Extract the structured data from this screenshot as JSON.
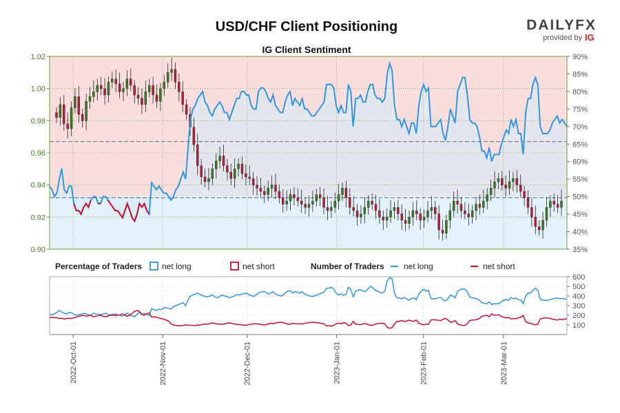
{
  "chart_data": {
    "type": "line",
    "title": "USD/CHF Client Positioning",
    "subtitle": "IG Client Sentiment",
    "price_axis": {
      "ylim": [
        0.9,
        1.02
      ],
      "ticks": [
        "0.90",
        "0.92",
        "0.94",
        "0.96",
        "0.98",
        "1.00",
        "1.02"
      ]
    },
    "sentiment_axis": {
      "ylim": [
        35,
        90
      ],
      "ticks": [
        "35%",
        "40%",
        "45%",
        "50%",
        "55%",
        "60%",
        "65%",
        "70%",
        "75%",
        "80%",
        "85%",
        "90%"
      ]
    },
    "traders_axis": {
      "ylim": [
        0,
        600
      ],
      "ticks": [
        "100",
        "200",
        "300",
        "400",
        "500",
        "600"
      ]
    },
    "date_ticks": [
      "2022-Oct-01",
      "2022-Nov-01",
      "2022-Dec-01",
      "2023-Jan-01",
      "2023-Feb-01",
      "2023-Mar-01"
    ],
    "reference_levels": {
      "price_dashed": [
        0.967,
        0.932
      ],
      "neutral_pct": 50
    },
    "legend": {
      "percentage_heading": "Percentage of Traders",
      "number_heading": "Number of Traders",
      "net_long": "net long",
      "net_short": "net short"
    },
    "colors": {
      "net_long": "#2f96e0",
      "net_short": "#c8102e",
      "candle_up": "#3a7a1e",
      "candle_down": "#b71c3c",
      "long_zone": "#e3f1fa",
      "short_zone": "#fadede"
    },
    "series": [
      {
        "name": "net long",
        "axis": "sentiment_pct",
        "values": [
          53,
          52,
          50,
          51,
          55,
          58,
          52,
          51,
          53,
          53,
          48,
          46,
          46,
          45,
          47,
          48,
          47,
          49,
          50,
          50,
          48,
          48,
          50,
          50,
          49,
          48,
          47,
          46,
          46,
          45,
          44,
          46,
          48,
          46,
          44,
          43,
          45,
          48,
          47,
          48,
          46,
          45,
          54,
          53,
          52,
          53,
          52,
          51,
          51,
          50,
          49,
          50,
          52,
          53,
          55,
          57,
          55,
          64,
          72,
          75,
          76,
          78,
          79,
          80,
          77,
          76,
          74,
          73,
          75,
          76,
          77,
          76,
          74,
          74,
          72,
          74,
          76,
          78,
          78,
          80,
          80,
          79,
          79,
          76,
          75,
          75,
          80,
          81,
          81,
          80,
          78,
          77,
          79,
          76,
          75,
          74,
          74,
          77,
          79,
          80,
          76,
          78,
          77,
          76,
          78,
          75,
          75,
          74,
          73,
          73,
          74,
          75,
          76,
          77,
          82,
          82,
          82,
          81,
          76,
          74,
          76,
          74,
          74,
          82,
          80,
          70,
          78,
          78,
          79,
          77,
          77,
          80,
          82,
          82,
          79,
          78,
          78,
          77,
          78,
          85,
          88,
          86,
          76,
          72,
          72,
          70,
          72,
          70,
          68,
          71,
          71,
          68,
          76,
          80,
          82,
          80,
          81,
          70,
          70,
          70,
          71,
          72,
          68,
          66,
          70,
          75,
          73,
          71,
          80,
          82,
          84,
          84,
          79,
          72,
          71,
          71,
          70,
          67,
          63,
          63,
          61,
          64,
          60,
          62,
          62,
          62,
          65,
          67,
          69,
          68,
          72,
          70,
          72,
          68,
          68,
          62,
          74,
          78,
          78,
          82,
          84,
          82,
          70,
          68,
          68,
          68,
          69,
          71,
          72,
          73,
          71,
          72,
          71,
          70
        ],
        "source_note": "approximate daily sentiment readings"
      },
      {
        "name": "net short",
        "axis": "sentiment_pct",
        "values": []
      }
    ],
    "traders_series": [
      {
        "name": "net long",
        "values": [
          210,
          205,
          215,
          230,
          250,
          235,
          220,
          215,
          230,
          225,
          210,
          200,
          205,
          210,
          220,
          215,
          205,
          200,
          220,
          215,
          210,
          208,
          212,
          220,
          210,
          200,
          195,
          215,
          205,
          200,
          190,
          210,
          222,
          205,
          195,
          185,
          210,
          230,
          205,
          220,
          210,
          200,
          270,
          260,
          250,
          265,
          260,
          275,
          280,
          270,
          265,
          290,
          300,
          310,
          320,
          330,
          300,
          360,
          400,
          410,
          420,
          430,
          415,
          405,
          395,
          390,
          400,
          410,
          390,
          380,
          395,
          410,
          400,
          395,
          380,
          390,
          400,
          415,
          410,
          420,
          425,
          430,
          415,
          405,
          395,
          410,
          430,
          440,
          445,
          440,
          420,
          430,
          445,
          420,
          410,
          400,
          405,
          430,
          450,
          455,
          430,
          445,
          440,
          430,
          445,
          420,
          410,
          400,
          395,
          400,
          410,
          420,
          430,
          440,
          480,
          480,
          490,
          470,
          430,
          410,
          420,
          410,
          415,
          490,
          470,
          390,
          450,
          460,
          465,
          450,
          445,
          470,
          500,
          490,
          460,
          450,
          440,
          430,
          450,
          560,
          590,
          580,
          430,
          380,
          380,
          370,
          385,
          370,
          355,
          375,
          380,
          360,
          420,
          450,
          470,
          450,
          460,
          375,
          370,
          372,
          380,
          385,
          360,
          350,
          370,
          410,
          400,
          380,
          450,
          465,
          475,
          470,
          445,
          390,
          380,
          378,
          370,
          355,
          330,
          325,
          320,
          340,
          310,
          320,
          320,
          320,
          340,
          355,
          365,
          355,
          385,
          370,
          380,
          360,
          360,
          320,
          400,
          430,
          430,
          460,
          480,
          460,
          370,
          355,
          355,
          355,
          360,
          370,
          375,
          380,
          370,
          375,
          370,
          365
        ]
      },
      {
        "name": "net short",
        "values": [
          170,
          180,
          175,
          175,
          165,
          170,
          160,
          165,
          170,
          165,
          175,
          180,
          190,
          195,
          200,
          190,
          195,
          200,
          185,
          190,
          195,
          200,
          190,
          185,
          190,
          200,
          210,
          195,
          200,
          205,
          215,
          200,
          190,
          200,
          220,
          240,
          250,
          240,
          210,
          200,
          215,
          225,
          180,
          185,
          180,
          170,
          165,
          160,
          150,
          140,
          110,
          100,
          95,
          92,
          90,
          95,
          100,
          98,
          97,
          95,
          92,
          100,
          98,
          105,
          110,
          108,
          112,
          120,
          115,
          110,
          108,
          105,
          110,
          118,
          122,
          115,
          110,
          106,
          104,
          100,
          98,
          96,
          102,
          108,
          110,
          112,
          108,
          105,
          100,
          102,
          110,
          118,
          112,
          120,
          125,
          128,
          126,
          115,
          108,
          104,
          118,
          112,
          110,
          112,
          108,
          118,
          120,
          125,
          128,
          128,
          124,
          120,
          115,
          110,
          90,
          90,
          88,
          95,
          112,
          118,
          112,
          122,
          120,
          92,
          100,
          135,
          108,
          104,
          102,
          110,
          114,
          104,
          96,
          97,
          108,
          112,
          115,
          118,
          110,
          75,
          65,
          70,
          110,
          135,
          138,
          145,
          135,
          140,
          150,
          140,
          138,
          150,
          118,
          108,
          100,
          108,
          105,
          150,
          155,
          152,
          148,
          145,
          158,
          168,
          152,
          128,
          132,
          145,
          110,
          100,
          95,
          96,
          112,
          145,
          150,
          152,
          155,
          168,
          190,
          195,
          200,
          185,
          215,
          200,
          202,
          205,
          188,
          178,
          172,
          178,
          160,
          168,
          162,
          176,
          178,
          200,
          135,
          120,
          118,
          108,
          100,
          108,
          160,
          170,
          172,
          172,
          168,
          160,
          155,
          150,
          160,
          154,
          160,
          165
        ]
      }
    ],
    "price_candles": {
      "note": "approximate daily OHLC closes",
      "closes": [
        0.982,
        0.99,
        0.978,
        0.975,
        0.988,
        0.995,
        0.984,
        0.98,
        0.992,
        0.995,
        0.998,
        1.002,
        1.0,
        0.996,
        1.004,
        1.006,
        1.003,
        0.998,
        1.0,
        1.006,
        1.002,
        0.996,
        0.994,
        0.99,
        0.998,
        1.002,
        0.996,
        0.992,
        1.0,
        1.004,
        1.01,
        1.012,
        1.004,
        0.998,
        0.99,
        0.984,
        0.976,
        0.965,
        0.952,
        0.945,
        0.942,
        0.944,
        0.95,
        0.955,
        0.958,
        0.952,
        0.948,
        0.944,
        0.95,
        0.953,
        0.947,
        0.945,
        0.944,
        0.94,
        0.938,
        0.936,
        0.934,
        0.938,
        0.94,
        0.936,
        0.932,
        0.928,
        0.93,
        0.934,
        0.932,
        0.93,
        0.928,
        0.926,
        0.928,
        0.93,
        0.934,
        0.932,
        0.926,
        0.924,
        0.926,
        0.93,
        0.934,
        0.938,
        0.932,
        0.926,
        0.924,
        0.92,
        0.922,
        0.926,
        0.93,
        0.928,
        0.924,
        0.92,
        0.918,
        0.92,
        0.924,
        0.926,
        0.922,
        0.918,
        0.916,
        0.92,
        0.924,
        0.922,
        0.918,
        0.92,
        0.924,
        0.926,
        0.922,
        0.912,
        0.91,
        0.918,
        0.924,
        0.93,
        0.928,
        0.924,
        0.922,
        0.92,
        0.924,
        0.928,
        0.926,
        0.93,
        0.934,
        0.938,
        0.942,
        0.944,
        0.94,
        0.938,
        0.942,
        0.944,
        0.94,
        0.936,
        0.932,
        0.926,
        0.92,
        0.914,
        0.912,
        0.918,
        0.926,
        0.93,
        0.928,
        0.926,
        0.93
      ]
    }
  },
  "brand": {
    "name": "DAILYFX",
    "provided_by": "provided by",
    "ig": "IG"
  }
}
